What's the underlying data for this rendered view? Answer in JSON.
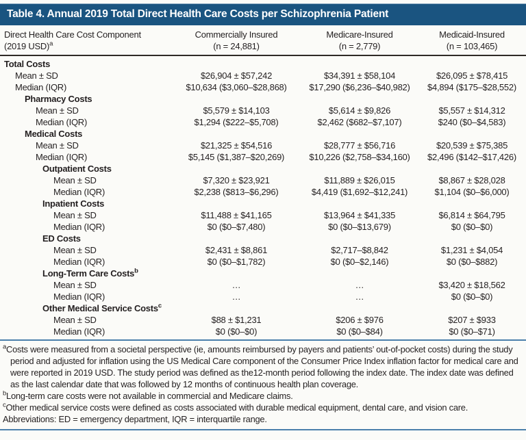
{
  "title": "Table 4. Annual 2019 Total Direct Health Care Costs per Schizophrenia Patient",
  "colors": {
    "title_bar": "#1a5480",
    "header_rule": "#2e2a26",
    "blue_rule": "#4a7fab",
    "text": "#231f20"
  },
  "header": {
    "component_line1": "Direct Health Care Cost Component",
    "component_line2": "(2019 USD)",
    "component_sup": "a",
    "groups": [
      {
        "label": "Commercially Insured",
        "n": "(n = 24,881)"
      },
      {
        "label": "Medicare-Insured",
        "n": "(n = 2,779)"
      },
      {
        "label": "Medicaid-Insured",
        "n": "(n = 103,465)"
      }
    ]
  },
  "rows": [
    {
      "label": "Total Costs",
      "section": true,
      "indent": 0
    },
    {
      "label": "Mean ± SD",
      "indent": 1,
      "values": [
        "$26,904 ± $57,242",
        "$34,391 ± $58,104",
        "$26,095 ± $78,415"
      ]
    },
    {
      "label": "Median (IQR)",
      "indent": 1,
      "values": [
        "$10,634 ($3,060–$28,868)",
        "$17,290 ($6,236–$40,982)",
        "$4,894 ($175–$28,552)"
      ]
    },
    {
      "label": "Pharmacy Costs",
      "section": true,
      "indent": 2
    },
    {
      "label": "Mean ± SD",
      "indent": 3,
      "values": [
        "$5,579 ± $14,103",
        "$5,614 ± $9,826",
        "$5,557 ± $14,312"
      ]
    },
    {
      "label": "Median (IQR)",
      "indent": 3,
      "values": [
        "$1,294 ($222–$5,708)",
        "$2,462 ($682–$7,107)",
        "$240 ($0–$4,583)"
      ]
    },
    {
      "label": "Medical Costs",
      "section": true,
      "indent": 2
    },
    {
      "label": "Mean ± SD",
      "indent": 3,
      "values": [
        "$21,325 ± $54,516",
        "$28,777 ± $56,716",
        "$20,539 ± $75,385"
      ]
    },
    {
      "label": "Median (IQR)",
      "indent": 3,
      "values": [
        "$5,145 ($1,387–$20,269)",
        "$10,226 ($2,758–$34,160)",
        "$2,496 ($142–$17,426)"
      ]
    },
    {
      "label": "Outpatient Costs",
      "section": true,
      "indent": 4
    },
    {
      "label": "Mean ± SD",
      "indent": 5,
      "values": [
        "$7,320 ± $23,921",
        "$11,889 ± $26,015",
        "$8,867 ± $28,028"
      ]
    },
    {
      "label": "Median (IQR)",
      "indent": 5,
      "values": [
        "$2,238 ($813–$6,296)",
        "$4,419 ($1,692–$12,241)",
        "$1,104 ($0–$6,000)"
      ]
    },
    {
      "label": "Inpatient Costs",
      "section": true,
      "indent": 4
    },
    {
      "label": "Mean ± SD",
      "indent": 5,
      "values": [
        "$11,488 ± $41,165",
        "$13,964 ± $41,335",
        "$6,814 ± $64,795"
      ]
    },
    {
      "label": "Median (IQR)",
      "indent": 5,
      "values": [
        "$0 ($0–$7,480)",
        "$0 ($0–$13,679)",
        "$0 ($0–$0)"
      ]
    },
    {
      "label": "ED Costs",
      "section": true,
      "indent": 4
    },
    {
      "label": "Mean ± SD",
      "indent": 5,
      "values": [
        "$2,431 ± $8,861",
        "$2,717–$8,842",
        "$1,231 ± $4,054"
      ]
    },
    {
      "label": "Median (IQR)",
      "indent": 5,
      "values": [
        "$0 ($0–$1,782)",
        "$0 ($0–$2,146)",
        "$0 ($0–$882)"
      ]
    },
    {
      "label": "Long-Term Care Costs",
      "sup": "b",
      "section": true,
      "indent": 4
    },
    {
      "label": "Mean ± SD",
      "indent": 5,
      "values": [
        "…",
        "…",
        "$3,420 ± $18,562"
      ]
    },
    {
      "label": "Median (IQR)",
      "indent": 5,
      "values": [
        "…",
        "…",
        "$0 ($0–$0)"
      ]
    },
    {
      "label": "Other Medical Service Costs",
      "sup": "c",
      "section": true,
      "indent": 4
    },
    {
      "label": "Mean ± SD",
      "indent": 5,
      "values": [
        "$88 ± $1,231",
        "$206 ± $976",
        "$207 ± $933"
      ]
    },
    {
      "label": "Median (IQR)",
      "indent": 5,
      "values": [
        "$0 ($0–$0)",
        "$0 ($0–$84)",
        "$0 ($0–$71)"
      ]
    }
  ],
  "footnotes": [
    {
      "sup": "a",
      "text": "Costs were measured from a societal perspective (ie, amounts reimbursed by payers and patients’ out-of-pocket costs) during the study period and adjusted for inflation using the US Medical Care component of the Consumer Price Index inflation factor for medical care and were reported in 2019 USD. The study period was defined as the12-month period following the index date. The index date was defined as the last calendar date that was followed by 12 months of continuous health plan coverage."
    },
    {
      "sup": "b",
      "text": "Long-term care costs were not available in commercial and Medicare claims."
    },
    {
      "sup": "c",
      "text": "Other medical service costs were defined as costs associated with durable medical equipment, dental care, and vision care."
    },
    {
      "sup": "",
      "text": "Abbreviations: ED = emergency department, IQR = interquartile range."
    }
  ]
}
